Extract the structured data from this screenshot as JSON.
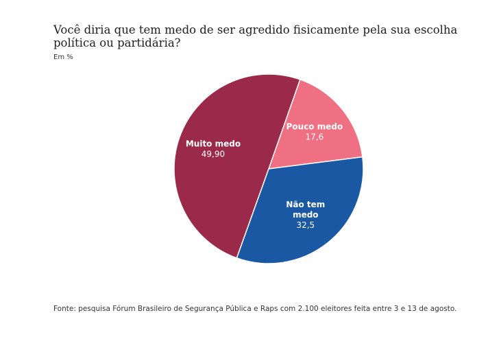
{
  "title": "Você diria que tem medo de ser agredido fisicamente pela sua escolha política ou partidária?",
  "subtitle": "Em %",
  "source": "Fonte: pesquisa Fórum Brasileiro de Segurança Pública e Raps com 2.100 eleitores feita entre 3 e 13 de agosto.",
  "chart_data": {
    "type": "pie",
    "title": "Você diria que tem medo de ser agredido fisicamente pela sua escolha política ou partidária?",
    "subtitle": "Em %",
    "slices": [
      {
        "label_lines": [
          "Pouco medo"
        ],
        "value": 17.6,
        "value_label": "17,6",
        "color": "#f07083"
      },
      {
        "label_lines": [
          "Não tem",
          "medo"
        ],
        "value": 32.5,
        "value_label": "32,5",
        "color": "#1a58a3"
      },
      {
        "label_lines": [
          "Muito medo"
        ],
        "value": 49.9,
        "value_label": "49,90",
        "color": "#9b2a4a"
      }
    ],
    "start_angle_deg": 19.4,
    "legend": "none"
  }
}
